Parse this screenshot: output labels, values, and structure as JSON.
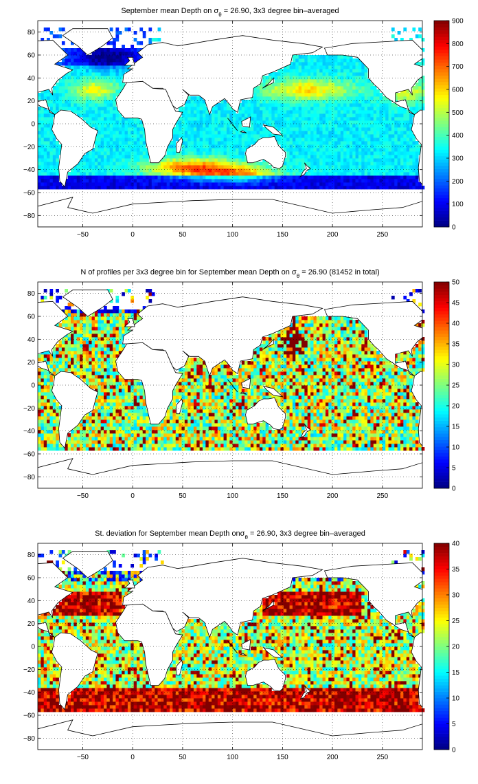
{
  "chart_data": [
    {
      "type": "heatmap",
      "title_pre": "September mean Depth on ",
      "title_sub": "θ",
      "title_post": " = 26.90, 3x3 degree bin–averaged",
      "xticks": [
        -50,
        0,
        50,
        100,
        150,
        200,
        250
      ],
      "xtick_labels": [
        "−50",
        "0",
        "50",
        "100",
        "150",
        "200",
        "250"
      ],
      "yticks": [
        80,
        60,
        40,
        20,
        0,
        -20,
        -40,
        -60,
        -80
      ],
      "ytick_labels": [
        "80",
        "60",
        "40",
        "20",
        "0",
        "−20",
        "−40",
        "−60",
        "−80"
      ],
      "xlim": [
        -95,
        290
      ],
      "ylim": [
        -90,
        90
      ],
      "grid": true,
      "colormap": "jet",
      "colorbar_range": [
        0,
        900
      ],
      "colorbar_ticks": [
        0,
        100,
        200,
        300,
        400,
        500,
        600,
        700,
        800,
        900
      ],
      "colorbar_labels": [
        "0",
        "100",
        "200",
        "300",
        "400",
        "500",
        "600",
        "700",
        "800",
        "900"
      ],
      "field": "depth",
      "seed": 11
    },
    {
      "type": "heatmap",
      "title_pre": "N of profiles per 3x3 degree bin for September mean Depth on ",
      "title_sub": "θ",
      "title_post": " = 26.90 (81452 in total)",
      "xticks": [
        -50,
        0,
        50,
        100,
        150,
        200,
        250
      ],
      "xtick_labels": [
        "−50",
        "0",
        "50",
        "100",
        "150",
        "200",
        "250"
      ],
      "yticks": [
        80,
        60,
        40,
        20,
        0,
        -20,
        -40,
        -60,
        -80
      ],
      "ytick_labels": [
        "80",
        "60",
        "40",
        "20",
        "0",
        "−20",
        "−40",
        "−60",
        "−80"
      ],
      "xlim": [
        -95,
        290
      ],
      "ylim": [
        -90,
        90
      ],
      "grid": true,
      "colormap": "jet",
      "colorbar_range": [
        0,
        50
      ],
      "colorbar_ticks": [
        0,
        5,
        10,
        15,
        20,
        25,
        30,
        35,
        40,
        45,
        50
      ],
      "colorbar_labels": [
        "0",
        "5",
        "10",
        "15",
        "20",
        "25",
        "30",
        "35",
        "40",
        "45",
        "50"
      ],
      "field": "count",
      "seed": 23
    },
    {
      "type": "heatmap",
      "title_pre": "St. deviation for September mean Depth on",
      "title_sub": "θ",
      "title_post": " = 26.90, 3x3 degree bin–averaged",
      "xticks": [
        -50,
        0,
        50,
        100,
        150,
        200,
        250
      ],
      "xtick_labels": [
        "−50",
        "0",
        "50",
        "100",
        "150",
        "200",
        "250"
      ],
      "yticks": [
        80,
        60,
        40,
        20,
        0,
        -20,
        -40,
        -60,
        -80
      ],
      "ytick_labels": [
        "80",
        "60",
        "40",
        "20",
        "0",
        "−20",
        "−40",
        "−60",
        "−80"
      ],
      "xlim": [
        -95,
        290
      ],
      "ylim": [
        -90,
        90
      ],
      "grid": true,
      "colormap": "jet",
      "colorbar_range": [
        0,
        40
      ],
      "colorbar_ticks": [
        0,
        5,
        10,
        15,
        20,
        25,
        30,
        35,
        40
      ],
      "colorbar_labels": [
        "0",
        "5",
        "10",
        "15",
        "20",
        "25",
        "30",
        "35",
        "40"
      ],
      "field": "std",
      "seed": 37
    }
  ]
}
